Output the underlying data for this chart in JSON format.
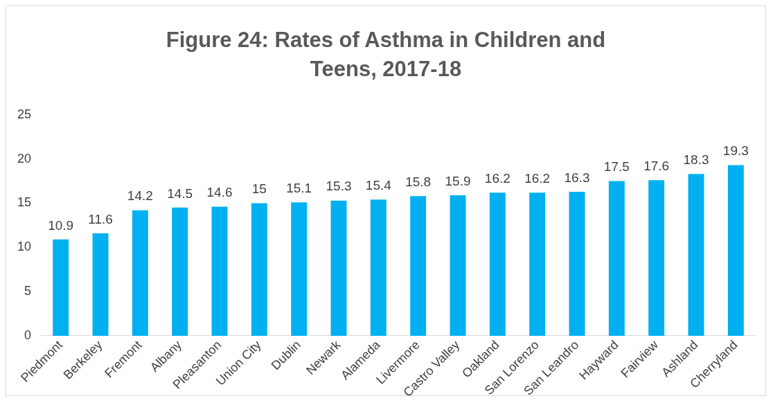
{
  "chart_data": {
    "type": "bar",
    "title": "Figure 24: Rates of Asthma in Children and Teens, 2017-18",
    "categories": [
      "Piedmont",
      "Berkeley",
      "Fremont",
      "Albany",
      "Pleasanton",
      "Union City",
      "Dublin",
      "Newark",
      "Alameda",
      "Livermore",
      "Castro Valley",
      "Oakland",
      "San Lorenzo",
      "San Leandro",
      "Hayward",
      "Fairview",
      "Ashland",
      "Cherryland"
    ],
    "values": [
      10.9,
      11.6,
      14.2,
      14.5,
      14.6,
      15,
      15.1,
      15.3,
      15.4,
      15.8,
      15.9,
      16.2,
      16.2,
      16.3,
      17.5,
      17.6,
      18.3,
      19.3
    ],
    "color": "#00b0f0",
    "ylim": [
      0,
      25
    ],
    "yticks": [
      0,
      5,
      10,
      15,
      20,
      25
    ],
    "grid": false,
    "data_labels": true
  }
}
